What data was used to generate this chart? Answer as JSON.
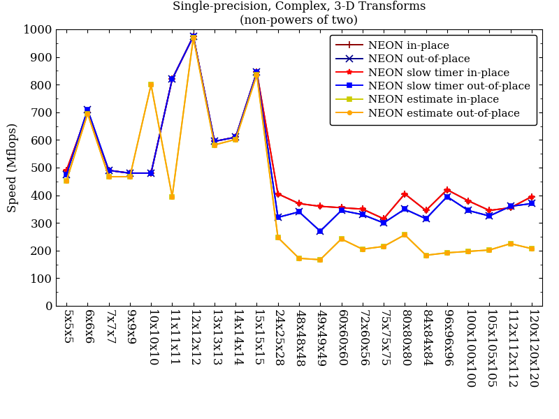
{
  "title_line1": "Single-precision, Complex, 3-D Transforms",
  "title_line2": "(non-powers of two)",
  "ylabel": "Speed (Mflops)",
  "ylim": [
    0,
    1000
  ],
  "yticks": [
    0,
    100,
    200,
    300,
    400,
    500,
    600,
    700,
    800,
    900,
    1000
  ],
  "categories": [
    "5x5x5",
    "6x6x6",
    "7x7x7",
    "9x9x9",
    "10x10x10",
    "11x11x11",
    "12x12x12",
    "13x13x13",
    "14x14x14",
    "15x15x15",
    "24x25x28",
    "48x48x48",
    "49x49x49",
    "60x60x60",
    "72x60x56",
    "75x75x75",
    "80x80x80",
    "84x84x84",
    "96x96x96",
    "100x100x100",
    "105x105x105",
    "112x112x112",
    "120x120x120"
  ],
  "series": [
    {
      "label": "NEON in-place",
      "color": "#8b0000",
      "marker": "+",
      "markersize": 7,
      "linewidth": 1.4,
      "values": [
        490,
        700,
        490,
        480,
        480,
        820,
        975,
        595,
        610,
        845,
        405,
        370,
        360,
        355,
        350,
        315,
        405,
        345,
        420,
        380,
        345,
        355,
        395
      ]
    },
    {
      "label": "NEON out-of-place",
      "color": "#00008b",
      "marker": "x",
      "markersize": 7,
      "linewidth": 1.4,
      "values": [
        475,
        710,
        490,
        480,
        480,
        820,
        975,
        595,
        610,
        845,
        320,
        340,
        270,
        345,
        330,
        300,
        350,
        315,
        395,
        345,
        325,
        360,
        370
      ]
    },
    {
      "label": "NEON slow timer in-place",
      "color": "#ff0000",
      "marker": "*",
      "markersize": 6,
      "linewidth": 1.4,
      "values": [
        490,
        700,
        490,
        480,
        480,
        820,
        975,
        595,
        610,
        845,
        405,
        370,
        360,
        355,
        350,
        315,
        405,
        345,
        420,
        380,
        345,
        355,
        395
      ]
    },
    {
      "label": "NEON slow timer out-of-place",
      "color": "#0000ff",
      "marker": "s",
      "markersize": 4,
      "linewidth": 1.4,
      "values": [
        475,
        710,
        490,
        480,
        480,
        820,
        975,
        595,
        610,
        845,
        320,
        340,
        270,
        345,
        330,
        300,
        350,
        315,
        395,
        345,
        325,
        360,
        370
      ]
    },
    {
      "label": "NEON estimate in-place",
      "color": "#cccc00",
      "marker": "s",
      "markersize": 4,
      "linewidth": 1.4,
      "values": [
        452,
        695,
        467,
        467,
        800,
        395,
        970,
        582,
        602,
        835,
        247,
        172,
        167,
        242,
        205,
        215,
        257,
        183,
        192,
        197,
        202,
        225,
        207
      ]
    },
    {
      "label": "NEON estimate out-of-place",
      "color": "#ffa500",
      "marker": "o",
      "markersize": 4,
      "linewidth": 1.4,
      "values": [
        452,
        695,
        467,
        467,
        800,
        395,
        970,
        582,
        602,
        835,
        247,
        172,
        167,
        242,
        205,
        215,
        257,
        183,
        192,
        197,
        202,
        225,
        207
      ]
    }
  ],
  "bg_color": "#ffffff",
  "title_fontsize": 12,
  "label_fontsize": 12,
  "tick_fontsize": 12,
  "legend_fontsize": 11
}
